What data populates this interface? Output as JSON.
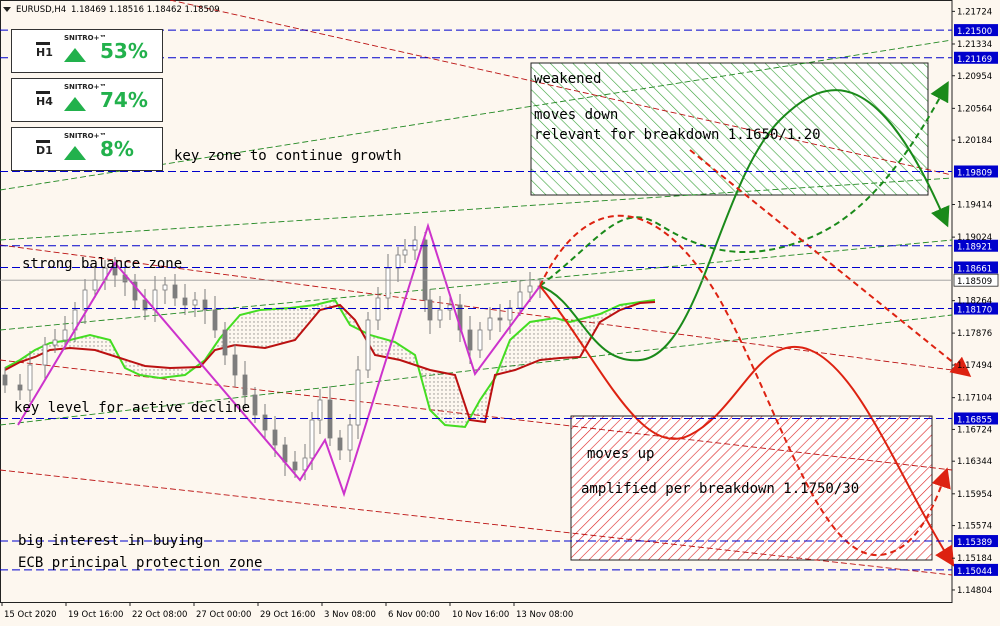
{
  "header": {
    "symbol": "EURUSD,H4",
    "ohlc": "1.18469 1.18516 1.18462 1.18509"
  },
  "badges": [
    {
      "timeframe": "H1",
      "brand": "SNITRO+™",
      "percent": "53%"
    },
    {
      "timeframe": "H4",
      "brand": "SNITRO+™",
      "percent": "74%"
    },
    {
      "timeframe": "D1",
      "brand": "SNITRO+™",
      "percent": "8%"
    }
  ],
  "annotations": {
    "growth_zone": "key zone to continue growth",
    "balance_zone": "strong balance zone",
    "decline_level": "key level for active decline",
    "buying_interest": "big interest in buying",
    "ecb_zone": "ECB principal protection zone",
    "green_box_1": "weakened",
    "green_box_2": "moves down",
    "green_box_3": "relevant for breakdown 1.1650/1.20",
    "red_box_1": "moves up",
    "red_box_2": "amplified per breakdown 1.1750/30"
  },
  "chart_data": {
    "type": "candlestick",
    "symbol": "EURUSD",
    "timeframe": "H4",
    "ylim": [
      1.1466,
      1.2186
    ],
    "y_ticks": [
      "1.21724",
      "1.21334",
      "1.20954",
      "1.20564",
      "1.20184",
      "1.19414",
      "1.19024",
      "1.18264",
      "1.17876",
      "1.17494",
      "1.17104",
      "1.16724",
      "1.16344",
      "1.15954",
      "1.15574",
      "1.15184",
      "1.14804"
    ],
    "x_ticks": [
      "15 Oct 2020",
      "19 Oct 16:00",
      "22 Oct 08:00",
      "27 Oct 00:00",
      "29 Oct 16:00",
      "3 Nov 08:00",
      "6 Nov 00:00",
      "10 Nov 16:00",
      "13 Nov 08:00"
    ],
    "current_price": 1.18509,
    "current_price_label": "1.18509",
    "horizontal_levels": [
      {
        "value": 1.215,
        "label": "1.21500"
      },
      {
        "value": 1.21169,
        "label": "1.21169"
      },
      {
        "value": 1.19809,
        "label": "1.19809"
      },
      {
        "value": 1.18921,
        "label": "1.18921"
      },
      {
        "value": 1.18661,
        "label": "1.18661"
      },
      {
        "value": 1.1817,
        "label": "1.18170"
      },
      {
        "value": 1.16855,
        "label": "1.16855"
      },
      {
        "value": 1.15389,
        "label": "1.15389"
      },
      {
        "value": 1.15044,
        "label": "1.15044"
      }
    ],
    "zigzag": [
      [
        "15 Oct 2020",
        1.1688
      ],
      [
        "19 Oct 16:00",
        1.188
      ],
      [
        "28 Oct",
        1.1624
      ],
      [
        "29 Oct 20:00",
        1.162
      ],
      [
        "3 Nov",
        1.1605
      ],
      [
        "4 Nov",
        1.1918
      ],
      [
        "9 Nov",
        1.175
      ],
      [
        "13 Nov 08:00",
        1.185
      ]
    ],
    "colors": {
      "background": "#fdf7ef",
      "candles": "#808080",
      "zigzag": "#cc33cc",
      "kumo_senkou_a": "#44dd22",
      "kumo_senkou_b": "#bb1111",
      "levels": "#0000cc",
      "bull_scenario": "#1a8a1a",
      "bear_scenario": "#dd2211"
    }
  }
}
